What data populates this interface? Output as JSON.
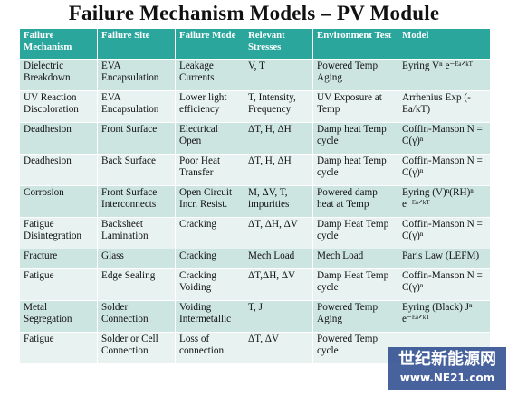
{
  "title": "Failure Mechanism Models – PV Module",
  "table": {
    "headers": [
      "Failure Mechanism",
      "Failure Site",
      "Failure Mode",
      "Relevant Stresses",
      "Environment Test",
      "Model"
    ],
    "rows": [
      [
        "Dielectric Breakdown",
        "EVA Encapsulation",
        "Leakage Currents",
        "V, T",
        "Powered Temp Aging",
        "Eyring Vⁿ e⁻ᴱᵃᐟᵏᵀ"
      ],
      [
        "UV Reaction Discoloration",
        "EVA Encapsulation",
        "Lower light efficiency",
        "T, Intensity, Frequency",
        "UV Exposure at Temp",
        "Arrhenius Exp (-Ea/kT)"
      ],
      [
        "Deadhesion",
        "Front Surface",
        "Electrical Open",
        "ΔT, H, ΔH",
        "Damp heat Temp cycle",
        "Coffin-Manson N = C(γ)ⁿ"
      ],
      [
        "Deadhesion",
        "Back Surface",
        "Poor Heat Transfer",
        "ΔT, H, ΔH",
        "Damp heat Temp cycle",
        "Coffin-Manson N = C(γ)ⁿ"
      ],
      [
        "Corrosion",
        "Front Surface Interconnects",
        "Open Circuit Incr. Resist.",
        "M, ΔV, T, impurities",
        "Powered damp heat at Temp",
        "Eyring (V)ⁿ(RH)ⁿ e⁻ᴱᵃᐟᵏᵀ"
      ],
      [
        "Fatigue Disintegration",
        "Backsheet Lamination",
        "Cracking",
        "ΔT, ΔH, ΔV",
        "Damp Heat Temp cycle",
        "Coffin-Manson N = C(γ)ⁿ"
      ],
      [
        "Fracture",
        "Glass",
        "Cracking",
        "Mech Load",
        "Mech Load",
        "Paris Law (LEFM)"
      ],
      [
        "Fatigue",
        "Edge Sealing",
        "Cracking Voiding",
        "ΔT,ΔH, ΔV",
        "Damp Heat Temp cycle",
        "Coffin-Manson N = C(γ)ⁿ"
      ],
      [
        "Metal Segregation",
        "Solder Connection",
        "Voiding Intermetallic",
        "T, J",
        "Powered Temp Aging",
        "Eyring (Black) Jⁿ e⁻ᴱᵃᐟᵏᵀ"
      ],
      [
        "Fatigue",
        "Solder or Cell Connection",
        "Loss of connection",
        "ΔT, ΔV",
        "Powered Temp cycle",
        ""
      ]
    ]
  },
  "watermark": {
    "chinese": "世纪新能源网",
    "url": "www.NE21.com"
  },
  "colors": {
    "header_bg": "#2aa69c",
    "row_odd": "#cde5e1",
    "row_even": "#e8f3f1"
  }
}
